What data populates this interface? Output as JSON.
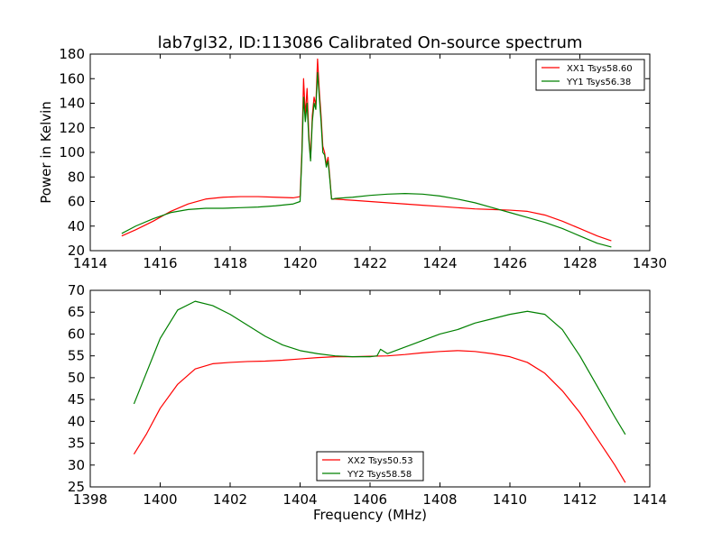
{
  "title": "lab7gl32, ID:113086 Calibrated On-source spectrum",
  "chart_data": [
    {
      "type": "line",
      "title": "lab7gl32, ID:113086 Calibrated On-source spectrum",
      "xlabel": "",
      "ylabel": "Power in Kelvin",
      "xlim": [
        1414,
        1430
      ],
      "ylim": [
        20,
        180
      ],
      "xticks": [
        1414,
        1416,
        1418,
        1420,
        1422,
        1424,
        1426,
        1428,
        1430
      ],
      "yticks": [
        20,
        40,
        60,
        80,
        100,
        120,
        140,
        160,
        180
      ],
      "grid": false,
      "legend_position": "upper right",
      "series": [
        {
          "name": "XX1 Tsys58.60",
          "color": "#ff0000",
          "x": [
            1414.9,
            1415.3,
            1415.8,
            1416.3,
            1416.8,
            1417.3,
            1417.8,
            1418.3,
            1418.8,
            1419.3,
            1419.8,
            1420.0,
            1420.05,
            1420.1,
            1420.15,
            1420.2,
            1420.25,
            1420.3,
            1420.35,
            1420.4,
            1420.45,
            1420.5,
            1420.55,
            1420.6,
            1420.65,
            1420.7,
            1420.75,
            1420.8,
            1420.85,
            1420.9,
            1420.95,
            1421.0,
            1421.5,
            1422.0,
            1422.5,
            1423.0,
            1423.5,
            1424.0,
            1424.5,
            1425.0,
            1425.5,
            1426.0,
            1426.5,
            1427.0,
            1427.5,
            1428.0,
            1428.5,
            1428.9
          ],
          "y": [
            32,
            37,
            44,
            52,
            58,
            62,
            63.5,
            64,
            64,
            63.5,
            63,
            64,
            100,
            160,
            130,
            152,
            115,
            95,
            130,
            145,
            138,
            176,
            150,
            130,
            105,
            100,
            90,
            96,
            80,
            62,
            62,
            62,
            61,
            60,
            59,
            58,
            57,
            56,
            55,
            54,
            53.5,
            53,
            52,
            49,
            44,
            38,
            32,
            28
          ]
        },
        {
          "name": "YY1 Tsys56.38",
          "color": "#008000",
          "x": [
            1414.9,
            1415.3,
            1415.8,
            1416.3,
            1416.8,
            1417.3,
            1417.8,
            1418.3,
            1418.8,
            1419.3,
            1419.8,
            1420.0,
            1420.05,
            1420.1,
            1420.15,
            1420.2,
            1420.25,
            1420.3,
            1420.35,
            1420.4,
            1420.45,
            1420.5,
            1420.55,
            1420.6,
            1420.65,
            1420.7,
            1420.75,
            1420.8,
            1420.85,
            1420.9,
            1420.95,
            1421.0,
            1421.5,
            1422.0,
            1422.5,
            1423.0,
            1423.5,
            1424.0,
            1424.5,
            1425.0,
            1425.5,
            1426.0,
            1426.5,
            1427.0,
            1427.5,
            1428.0,
            1428.5,
            1428.9
          ],
          "y": [
            34,
            40,
            46,
            51,
            53.5,
            54.5,
            54.5,
            55,
            55.5,
            56.5,
            58,
            60,
            95,
            145,
            125,
            140,
            110,
            93,
            125,
            140,
            135,
            165,
            145,
            125,
            100,
            98,
            88,
            93,
            78,
            62,
            62,
            62.5,
            63.5,
            65,
            66,
            66.5,
            66,
            64.5,
            62,
            59,
            55,
            51,
            47,
            43,
            38,
            32,
            26,
            23
          ]
        }
      ]
    },
    {
      "type": "line",
      "title": "",
      "xlabel": "Frequency (MHz)",
      "ylabel": "",
      "xlim": [
        1398,
        1414
      ],
      "ylim": [
        25,
        70
      ],
      "xticks": [
        1398,
        1400,
        1402,
        1404,
        1406,
        1408,
        1410,
        1412,
        1414
      ],
      "yticks": [
        25,
        30,
        35,
        40,
        45,
        50,
        55,
        60,
        65,
        70
      ],
      "grid": false,
      "legend_position": "lower center",
      "series": [
        {
          "name": "XX2 Tsys50.53",
          "color": "#ff0000",
          "x": [
            1399.25,
            1399.6,
            1400.0,
            1400.5,
            1401.0,
            1401.5,
            1402.0,
            1402.5,
            1403.0,
            1403.5,
            1404.0,
            1404.5,
            1405.0,
            1405.5,
            1406.0,
            1406.5,
            1407.0,
            1407.5,
            1408.0,
            1408.5,
            1409.0,
            1409.5,
            1410.0,
            1410.5,
            1411.0,
            1411.5,
            1412.0,
            1412.5,
            1413.0,
            1413.3
          ],
          "y": [
            32.5,
            37,
            43,
            48.5,
            52,
            53.2,
            53.5,
            53.7,
            53.8,
            54,
            54.3,
            54.6,
            54.8,
            54.8,
            54.9,
            55,
            55.3,
            55.7,
            56,
            56.2,
            56,
            55.5,
            54.8,
            53.5,
            51,
            47,
            42,
            36,
            30,
            26
          ]
        },
        {
          "name": "YY2 Tsys58.58",
          "color": "#008000",
          "x": [
            1399.25,
            1399.6,
            1400.0,
            1400.5,
            1401.0,
            1401.5,
            1402.0,
            1402.5,
            1403.0,
            1403.5,
            1404.0,
            1404.5,
            1405.0,
            1405.5,
            1406.0,
            1406.2,
            1406.3,
            1406.5,
            1407.0,
            1407.5,
            1408.0,
            1408.5,
            1409.0,
            1409.5,
            1410.0,
            1410.5,
            1411.0,
            1411.5,
            1412.0,
            1412.5,
            1413.0,
            1413.3
          ],
          "y": [
            44,
            51,
            59,
            65.5,
            67.5,
            66.5,
            64.5,
            62,
            59.5,
            57.5,
            56.2,
            55.5,
            55,
            54.8,
            54.8,
            55,
            56.5,
            55.5,
            57,
            58.5,
            60,
            61,
            62.5,
            63.5,
            64.5,
            65.2,
            64.5,
            61,
            55,
            48,
            41,
            37
          ]
        }
      ]
    }
  ]
}
